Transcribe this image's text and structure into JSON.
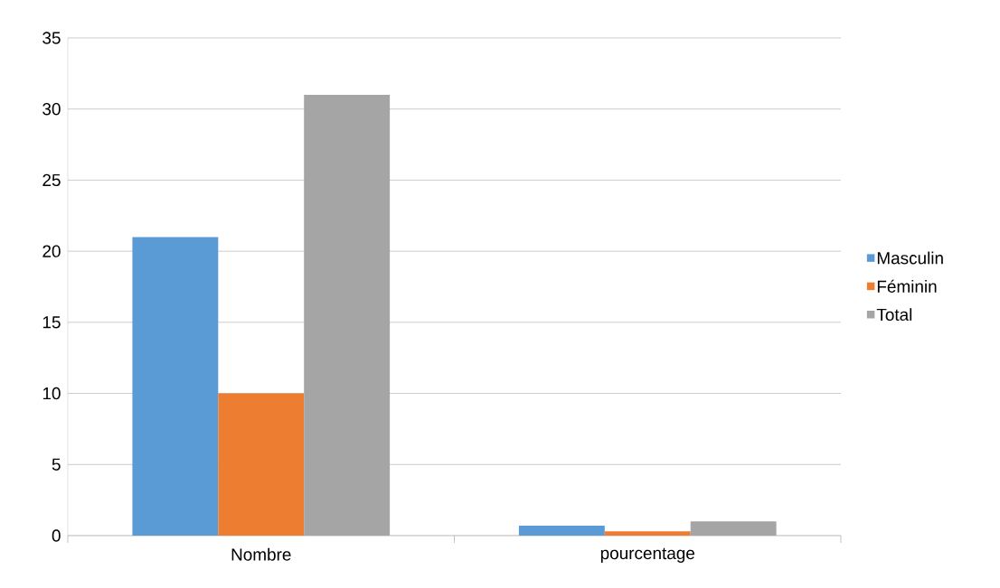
{
  "chart_data": {
    "type": "bar",
    "categories": [
      "Nombre",
      "pourcentage"
    ],
    "series": [
      {
        "name": "Masculin",
        "color": "#5b9bd5",
        "values": [
          21,
          0.7
        ]
      },
      {
        "name": "Féminin",
        "color": "#ed7d31",
        "values": [
          10,
          0.3
        ]
      },
      {
        "name": "Total",
        "color": "#a5a5a5",
        "values": [
          31,
          1
        ]
      }
    ],
    "ylim": [
      0,
      35
    ],
    "yticks": [
      0,
      5,
      10,
      15,
      20,
      25,
      30,
      35
    ],
    "grid": "y",
    "legend": "right"
  }
}
